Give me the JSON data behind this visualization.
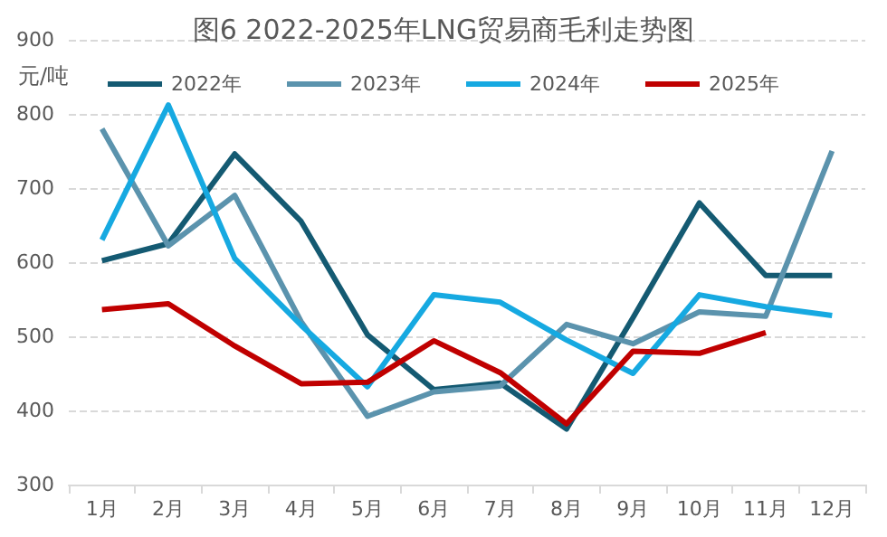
{
  "chart_data": {
    "type": "line",
    "title": "图6 2022-2025年LNG贸易商毛利走势图",
    "ylabel": "元/吨",
    "categories": [
      "1月",
      "2月",
      "3月",
      "4月",
      "5月",
      "6月",
      "7月",
      "8月",
      "9月",
      "10月",
      "11月",
      "12月"
    ],
    "series": [
      {
        "name": "2022年",
        "color": "#145a72",
        "values": [
          602,
          625,
          746,
          655,
          502,
          428,
          437,
          375,
          525,
          680,
          582,
          582
        ]
      },
      {
        "name": "2023年",
        "color": "#5b93ad",
        "values": [
          780,
          622,
          690,
          520,
          392,
          425,
          433,
          516,
          490,
          533,
          527,
          750
        ]
      },
      {
        "name": "2024年",
        "color": "#16a9e1",
        "values": [
          630,
          812,
          605,
          515,
          432,
          556,
          546,
          495,
          450,
          556,
          540,
          528
        ]
      },
      {
        "name": "2025年",
        "color": "#c00000",
        "values": [
          536,
          544,
          487,
          436,
          438,
          494,
          451,
          382,
          480,
          477,
          505,
          null
        ]
      }
    ],
    "ylim": [
      300,
      900
    ],
    "yticks": [
      300,
      400,
      500,
      600,
      700,
      800,
      900
    ],
    "grid": "y",
    "legend": "top",
    "marker": "none",
    "line_style": "solid"
  }
}
